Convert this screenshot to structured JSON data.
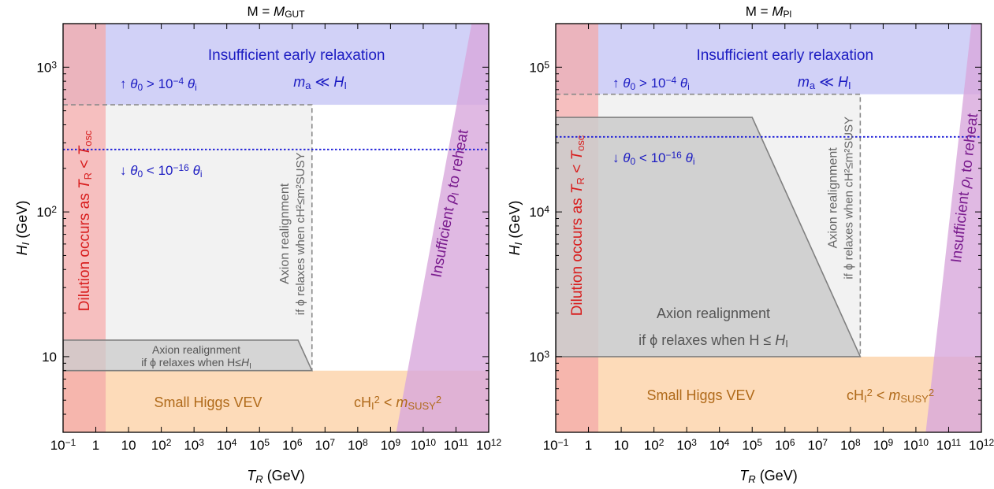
{
  "colors": {
    "relaxation": "#c9c9f6",
    "dilution": "#f3a9a9",
    "reheat": "#d8a8dc",
    "higgs": "#fdd7b1",
    "dashed_region": "#f1f1f1",
    "solid_region": "#cbcbcb",
    "blue_text": "#1c1cc2",
    "red_text": "#d81e1e",
    "purple_text": "#7a1c8e",
    "orange_text": "#b06a1a",
    "gray_text": "#666666"
  },
  "chart_data": [
    {
      "type": "area",
      "title_prefix": "M = ",
      "title_var": "M",
      "title_sub": "GUT",
      "xlabel_var": "T",
      "xlabel_sub": "R",
      "xlabel_unit": "(GeV)",
      "ylabel_var": "H",
      "ylabel_sub": "I",
      "ylabel_unit": "(GeV)",
      "x_scale": "log",
      "y_scale": "log",
      "xlim": [
        0.1,
        1000000000000.0
      ],
      "ylim": [
        3,
        2000
      ],
      "x_ticks": [
        {
          "v": 0.1,
          "base": "10",
          "exp": "−1"
        },
        {
          "v": 1,
          "text": "1"
        },
        {
          "v": 10,
          "text": "10"
        },
        {
          "v": 100,
          "base": "10",
          "exp": "2"
        },
        {
          "v": 1000.0,
          "base": "10",
          "exp": "3"
        },
        {
          "v": 10000.0,
          "base": "10",
          "exp": "4"
        },
        {
          "v": 100000.0,
          "base": "10",
          "exp": "5"
        },
        {
          "v": 1000000.0,
          "base": "10",
          "exp": "6"
        },
        {
          "v": 10000000.0,
          "base": "10",
          "exp": "7"
        },
        {
          "v": 100000000.0,
          "base": "10",
          "exp": "8"
        },
        {
          "v": 1000000000.0,
          "base": "10",
          "exp": "9"
        },
        {
          "v": 10000000000.0,
          "base": "10",
          "exp": "10"
        },
        {
          "v": 100000000000.0,
          "base": "10",
          "exp": "11"
        },
        {
          "v": 1000000000000.0,
          "base": "10",
          "exp": "12"
        }
      ],
      "y_ticks": [
        {
          "v": 10,
          "text": "10"
        },
        {
          "v": 100,
          "base": "10",
          "exp": "2"
        },
        {
          "v": 1000,
          "base": "10",
          "exp": "3"
        }
      ],
      "regions": {
        "dilution_T_max": 2,
        "relaxation_H_min": 550,
        "higgs_H_max": 8,
        "reheat": {
          "bottom_left": 1500000000.0,
          "top_left": 300000000000.0
        },
        "dashed_box": {
          "T_max": 4000000.0,
          "H_max": 550
        },
        "realign_H_line": 8,
        "realign_polygon": [
          [
            0.1,
            13
          ],
          [
            1500000.0,
            13
          ],
          [
            4000000.0,
            8
          ],
          [
            0.1,
            8
          ]
        ],
        "theta_line_H": 270
      },
      "labels": {
        "relax_title": "Insufficient early relaxation",
        "relax_condition": "m_a ≪ H_I",
        "theta_up": "↑  θ0 > 10^−4 θi",
        "theta_down": "↓  θ0 < 10^−16 θi",
        "dilution": "Dilution occurs as T_R < T_osc",
        "reheat": "Insufficient ρI to reheat",
        "higgs_name": "Small Higgs VEV",
        "higgs_cond": "cH_I^2 < m_SUSY^2",
        "dashed_line1": "Axion realignment",
        "dashed_line2": "if ϕ relaxes when cH²≤m²SUSY",
        "realign_line1": "Axion realignment",
        "realign_line2": "if ϕ relaxes when H≤H_I"
      }
    },
    {
      "type": "area",
      "title_prefix": "M = ",
      "title_var": "M",
      "title_sub": "Pl",
      "xlabel_var": "T",
      "xlabel_sub": "R",
      "xlabel_unit": "(GeV)",
      "ylabel_var": "H",
      "ylabel_sub": "I",
      "ylabel_unit": "(GeV)",
      "x_scale": "log",
      "y_scale": "log",
      "xlim": [
        0.1,
        1000000000000.0
      ],
      "ylim": [
        300,
        200000
      ],
      "x_ticks": [
        {
          "v": 0.1,
          "base": "10",
          "exp": "−1"
        },
        {
          "v": 1,
          "text": "1"
        },
        {
          "v": 10,
          "text": "10"
        },
        {
          "v": 100,
          "base": "10",
          "exp": "2"
        },
        {
          "v": 1000.0,
          "base": "10",
          "exp": "3"
        },
        {
          "v": 10000.0,
          "base": "10",
          "exp": "4"
        },
        {
          "v": 100000.0,
          "base": "10",
          "exp": "5"
        },
        {
          "v": 1000000.0,
          "base": "10",
          "exp": "6"
        },
        {
          "v": 10000000.0,
          "base": "10",
          "exp": "7"
        },
        {
          "v": 100000000.0,
          "base": "10",
          "exp": "8"
        },
        {
          "v": 1000000000.0,
          "base": "10",
          "exp": "9"
        },
        {
          "v": 10000000000.0,
          "base": "10",
          "exp": "10"
        },
        {
          "v": 100000000000.0,
          "base": "10",
          "exp": "11"
        },
        {
          "v": 1000000000000.0,
          "base": "10",
          "exp": "12"
        }
      ],
      "y_ticks": [
        {
          "v": 1000,
          "base": "10",
          "exp": "3"
        },
        {
          "v": 10000,
          "base": "10",
          "exp": "4"
        },
        {
          "v": 100000,
          "base": "10",
          "exp": "5"
        }
      ],
      "regions": {
        "dilution_T_max": 2,
        "relaxation_H_min": 65000,
        "higgs_H_max": 1000,
        "reheat": {
          "bottom_left": 20000000000.0,
          "top_left": 500000000000.0
        },
        "dashed_box": {
          "T_max": 200000000.0,
          "H_max": 65000
        },
        "realign_H_line": 1000,
        "realign_polygon": [
          [
            0.1,
            45000
          ],
          [
            100000.0,
            45000
          ],
          [
            200000000.0,
            1000
          ],
          [
            0.1,
            1000
          ]
        ],
        "theta_line_H": 33000
      },
      "labels": {
        "relax_title": "Insufficient early relaxation",
        "relax_condition": "m_a ≪ H_I",
        "theta_up": "↑  θ0 > 10^−4 θi",
        "theta_down": "↓  θ0 < 10^−16 θi",
        "dilution": "Dilution occurs as T_R < T_osc",
        "reheat": "Insufficient ρI to reheat",
        "higgs_name": "Small Higgs VEV",
        "higgs_cond": "cH_I^2 < m_SUSY^2",
        "dashed_line1": "Axion realignment",
        "dashed_line2": "if ϕ relaxes when cH²≤m²SUSY",
        "realign_line1": "Axion realignment",
        "realign_line2": "if ϕ relaxes when H ≤ H_I"
      }
    }
  ]
}
